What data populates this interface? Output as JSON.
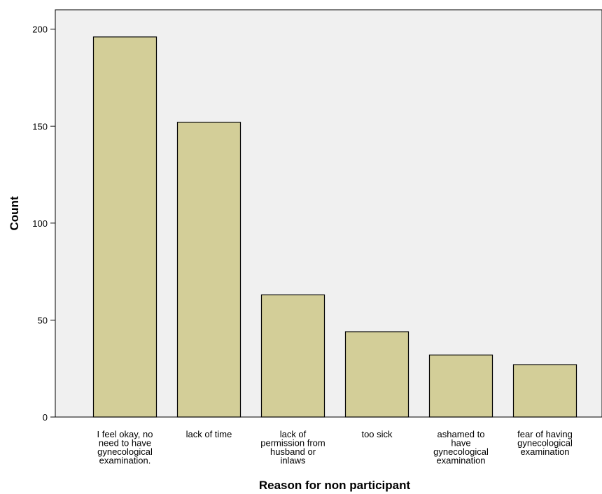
{
  "chart_data": {
    "type": "bar",
    "categories": [
      [
        "I feel okay, no",
        "need to have",
        "gynecological",
        "examination."
      ],
      [
        "lack of time"
      ],
      [
        "lack of",
        "permission from",
        "husband or",
        "inlaws"
      ],
      [
        "too sick"
      ],
      [
        "ashamed to",
        "have",
        "gynecological",
        "examination"
      ],
      [
        "fear of having",
        "gynecological",
        "examination"
      ]
    ],
    "values": [
      196,
      152,
      63,
      44,
      32,
      27
    ],
    "xlabel": "Reason for non participant",
    "ylabel": "Count",
    "ylim": [
      0,
      210
    ],
    "yticks": [
      0,
      50,
      100,
      150,
      200
    ],
    "grid": false,
    "colors": {
      "bar_fill": "#d3ce98",
      "bar_stroke": "#000000",
      "plot_background": "#f0f0f0"
    }
  }
}
